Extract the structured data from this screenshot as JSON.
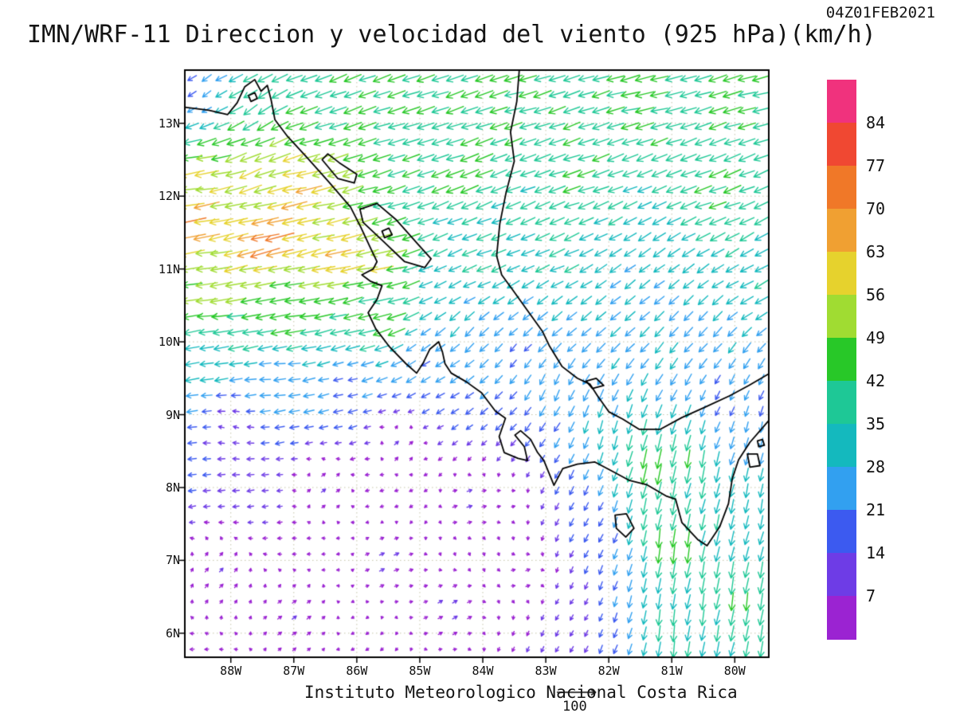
{
  "header": {
    "timestamp": "04Z01FEB2021",
    "title": "IMN/WRF-11 Direccion y velocidad del viento (925 hPa)(km/h)"
  },
  "footer": {
    "credit": "Instituto Meteorologico Nacional Costa Rica",
    "reference_value": "100"
  },
  "chart_data": {
    "type": "vector_field",
    "model": "IMN/WRF-11",
    "variable": "Direccion y velocidad del viento",
    "level": "925 hPa",
    "units": "km/h",
    "valid_time": "04Z01FEB2021",
    "lon_range": [
      -88.73,
      -79.46
    ],
    "lat_range": [
      5.67,
      13.73
    ],
    "lat_ticks": [
      "13N",
      "12N",
      "11N",
      "10N",
      "9N",
      "8N",
      "7N",
      "6N"
    ],
    "lat_tick_values": [
      13,
      12,
      11,
      10,
      9,
      8,
      7,
      6
    ],
    "lon_ticks": [
      "88W",
      "87W",
      "86W",
      "85W",
      "84W",
      "83W",
      "82W",
      "81W",
      "80W"
    ],
    "lon_tick_values": [
      -88,
      -87,
      -86,
      -85,
      -84,
      -83,
      -82,
      -81,
      -80
    ],
    "grid": {
      "cols": 40,
      "rows": 37
    },
    "reference_vector_kmh": 100,
    "colorbar": {
      "labels": [
        84,
        77,
        70,
        63,
        56,
        49,
        42,
        35,
        28,
        21,
        14,
        7
      ],
      "colors_top_to_bottom": [
        "#f0327d",
        "#f04832",
        "#f07828",
        "#f0a032",
        "#e6d22d",
        "#a0dc32",
        "#28c828",
        "#1ec896",
        "#14b9be",
        "#32a0f0",
        "#3c5af0",
        "#6e3ce6",
        "#9b23d2"
      ]
    },
    "sampled_wind_vectors": {
      "columns": [
        "lon",
        "lat",
        "u_kmh",
        "v_kmh"
      ],
      "points": [
        [
          -88.6,
          11.6,
          -66,
          -10
        ],
        [
          -87.4,
          11.4,
          -72,
          -16
        ],
        [
          -86.3,
          11.1,
          -64,
          -14
        ],
        [
          -85.6,
          11.0,
          -55,
          -10
        ],
        [
          -88.5,
          12.2,
          -56,
          -8
        ],
        [
          -87.6,
          12.5,
          -52,
          -22
        ],
        [
          -86.9,
          12.1,
          -62,
          -12
        ],
        [
          -88.3,
          10.6,
          -52,
          -6
        ],
        [
          -87.0,
          10.4,
          -48,
          -8
        ],
        [
          -85.9,
          10.3,
          -42,
          -10
        ],
        [
          -85.4,
          10.35,
          -44,
          -14
        ],
        [
          -84.6,
          10.8,
          -26,
          -14
        ],
        [
          -88.4,
          9.8,
          -30,
          -4
        ],
        [
          -87.3,
          9.6,
          -24,
          -2
        ],
        [
          -86.2,
          9.5,
          -18,
          -4
        ],
        [
          -85.0,
          9.8,
          -16,
          -10
        ],
        [
          -88.0,
          8.8,
          -8,
          2
        ],
        [
          -86.5,
          8.0,
          6,
          4
        ],
        [
          -88.2,
          6.8,
          5,
          5
        ],
        [
          -87.0,
          6.2,
          6,
          4
        ],
        [
          -85.5,
          7.0,
          7,
          3
        ],
        [
          -84.5,
          6.3,
          7,
          4
        ],
        [
          -84.2,
          7.8,
          8,
          3
        ],
        [
          -83.3,
          6.8,
          5,
          2
        ],
        [
          -85.3,
          8.6,
          6,
          5
        ],
        [
          -88.5,
          13.4,
          -16,
          -12
        ],
        [
          -87.6,
          13.2,
          -30,
          -20
        ],
        [
          -86.5,
          13.5,
          -38,
          -14
        ],
        [
          -85.0,
          13.4,
          -40,
          -12
        ],
        [
          -83.5,
          13.4,
          -42,
          -12
        ],
        [
          -81.5,
          13.4,
          -44,
          -10
        ],
        [
          -79.8,
          13.4,
          -42,
          -10
        ],
        [
          -82.5,
          12.3,
          -40,
          -12
        ],
        [
          -80.3,
          12.0,
          -40,
          -14
        ],
        [
          -79.7,
          10.8,
          -30,
          -16
        ],
        [
          -82.8,
          11.2,
          -34,
          -14
        ],
        [
          -84.3,
          12.4,
          -42,
          -14
        ],
        [
          -84.0,
          11.2,
          -34,
          -12
        ],
        [
          -83.0,
          10.3,
          -22,
          -18
        ],
        [
          -84.3,
          10.1,
          -18,
          -20
        ],
        [
          -84.9,
          10.05,
          -20,
          -16
        ],
        [
          -81.8,
          10.5,
          -22,
          -18
        ],
        [
          -80.5,
          10.0,
          -18,
          -20
        ],
        [
          -82.9,
          9.4,
          -10,
          -22
        ],
        [
          -82.0,
          8.8,
          -8,
          -28
        ],
        [
          -81.3,
          8.3,
          -10,
          -48
        ],
        [
          -80.8,
          8.4,
          -8,
          -40
        ],
        [
          -81.0,
          7.2,
          -6,
          -44
        ],
        [
          -80.9,
          6.0,
          -5,
          -36
        ],
        [
          -79.9,
          6.5,
          -6,
          -40
        ],
        [
          -79.7,
          7.8,
          -6,
          -30
        ],
        [
          -79.6,
          8.8,
          -5,
          -20
        ],
        [
          -80.2,
          9.2,
          -8,
          -18
        ],
        [
          -82.3,
          7.5,
          -8,
          -14
        ],
        [
          -82.6,
          6.3,
          -5,
          -8
        ],
        [
          -83.6,
          7.8,
          3,
          1
        ],
        [
          -83.5,
          9.8,
          -12,
          -14
        ]
      ]
    },
    "coastlines": {
      "open": [
        [
          [
            -88.73,
            13.22
          ],
          [
            -88.35,
            13.18
          ],
          [
            -88.05,
            13.12
          ],
          [
            -87.9,
            13.28
          ],
          [
            -87.78,
            13.5
          ],
          [
            -87.62,
            13.6
          ],
          [
            -87.52,
            13.44
          ],
          [
            -87.42,
            13.52
          ],
          [
            -87.36,
            13.32
          ],
          [
            -87.3,
            13.05
          ],
          [
            -87.1,
            12.82
          ],
          [
            -86.78,
            12.52
          ],
          [
            -86.45,
            12.2
          ],
          [
            -86.1,
            11.85
          ],
          [
            -85.94,
            11.58
          ],
          [
            -85.8,
            11.32
          ],
          [
            -85.68,
            11.1
          ],
          [
            -85.74,
            11.0
          ],
          [
            -85.92,
            10.92
          ],
          [
            -85.78,
            10.83
          ],
          [
            -85.6,
            10.77
          ],
          [
            -85.68,
            10.58
          ],
          [
            -85.82,
            10.4
          ],
          [
            -85.7,
            10.18
          ],
          [
            -85.48,
            9.93
          ],
          [
            -85.22,
            9.7
          ],
          [
            -85.05,
            9.57
          ],
          [
            -84.94,
            9.72
          ],
          [
            -84.84,
            9.9
          ],
          [
            -84.7,
            10.0
          ],
          [
            -84.64,
            9.86
          ],
          [
            -84.6,
            9.7
          ],
          [
            -84.5,
            9.57
          ],
          [
            -84.26,
            9.45
          ],
          [
            -84.02,
            9.3
          ],
          [
            -83.8,
            9.05
          ],
          [
            -83.64,
            8.95
          ],
          [
            -83.74,
            8.7
          ],
          [
            -83.66,
            8.48
          ],
          [
            -83.44,
            8.4
          ],
          [
            -83.29,
            8.37
          ],
          [
            -83.34,
            8.56
          ],
          [
            -83.49,
            8.72
          ],
          [
            -83.4,
            8.78
          ],
          [
            -83.24,
            8.66
          ],
          [
            -83.13,
            8.48
          ],
          [
            -83.03,
            8.37
          ],
          [
            -82.87,
            8.03
          ],
          [
            -82.73,
            8.26
          ],
          [
            -82.5,
            8.32
          ],
          [
            -82.22,
            8.35
          ],
          [
            -81.98,
            8.24
          ],
          [
            -81.68,
            8.1
          ],
          [
            -81.4,
            8.04
          ],
          [
            -81.08,
            7.88
          ],
          [
            -80.94,
            7.84
          ],
          [
            -80.84,
            7.52
          ],
          [
            -80.58,
            7.28
          ],
          [
            -80.44,
            7.2
          ],
          [
            -80.24,
            7.46
          ],
          [
            -80.1,
            7.78
          ],
          [
            -80.04,
            8.12
          ],
          [
            -79.94,
            8.38
          ],
          [
            -79.76,
            8.62
          ],
          [
            -79.58,
            8.8
          ],
          [
            -79.46,
            8.92
          ]
        ],
        [
          [
            -83.42,
            13.74
          ],
          [
            -83.46,
            13.3
          ],
          [
            -83.56,
            12.88
          ],
          [
            -83.5,
            12.48
          ],
          [
            -83.63,
            12.05
          ],
          [
            -83.73,
            11.62
          ],
          [
            -83.78,
            11.18
          ],
          [
            -83.7,
            10.92
          ],
          [
            -83.54,
            10.73
          ],
          [
            -83.3,
            10.44
          ],
          [
            -83.05,
            10.14
          ],
          [
            -82.94,
            9.94
          ],
          [
            -82.74,
            9.66
          ],
          [
            -82.5,
            9.5
          ],
          [
            -82.3,
            9.42
          ],
          [
            -82.18,
            9.26
          ],
          [
            -82.0,
            9.04
          ],
          [
            -81.78,
            8.94
          ],
          [
            -81.52,
            8.8
          ],
          [
            -81.18,
            8.8
          ],
          [
            -80.84,
            8.96
          ],
          [
            -80.48,
            9.1
          ],
          [
            -80.08,
            9.26
          ],
          [
            -79.78,
            9.4
          ],
          [
            -79.46,
            9.56
          ]
        ]
      ],
      "closed": [
        [
          [
            -85.95,
            11.82
          ],
          [
            -85.68,
            11.9
          ],
          [
            -85.38,
            11.68
          ],
          [
            -85.02,
            11.33
          ],
          [
            -84.82,
            11.14
          ],
          [
            -84.92,
            11.02
          ],
          [
            -85.24,
            11.1
          ],
          [
            -85.58,
            11.38
          ],
          [
            -85.9,
            11.64
          ]
        ],
        [
          [
            -86.55,
            12.5
          ],
          [
            -86.3,
            12.24
          ],
          [
            -86.04,
            12.18
          ],
          [
            -86.0,
            12.3
          ],
          [
            -86.28,
            12.46
          ],
          [
            -86.46,
            12.58
          ]
        ],
        [
          [
            -85.6,
            11.52
          ],
          [
            -85.49,
            11.56
          ],
          [
            -85.44,
            11.47
          ],
          [
            -85.56,
            11.43
          ]
        ],
        [
          [
            -81.9,
            7.62
          ],
          [
            -81.72,
            7.64
          ],
          [
            -81.6,
            7.44
          ],
          [
            -81.73,
            7.32
          ],
          [
            -81.88,
            7.44
          ]
        ],
        [
          [
            -82.36,
            9.46
          ],
          [
            -82.2,
            9.5
          ],
          [
            -82.08,
            9.4
          ],
          [
            -82.26,
            9.36
          ]
        ],
        [
          [
            -87.72,
            13.38
          ],
          [
            -87.62,
            13.42
          ],
          [
            -87.58,
            13.34
          ],
          [
            -87.68,
            13.3
          ]
        ],
        [
          [
            -79.8,
            8.46
          ],
          [
            -79.64,
            8.46
          ],
          [
            -79.6,
            8.3
          ],
          [
            -79.76,
            8.28
          ]
        ],
        [
          [
            -79.64,
            8.64
          ],
          [
            -79.56,
            8.66
          ],
          [
            -79.53,
            8.58
          ],
          [
            -79.62,
            8.56
          ]
        ]
      ]
    }
  }
}
